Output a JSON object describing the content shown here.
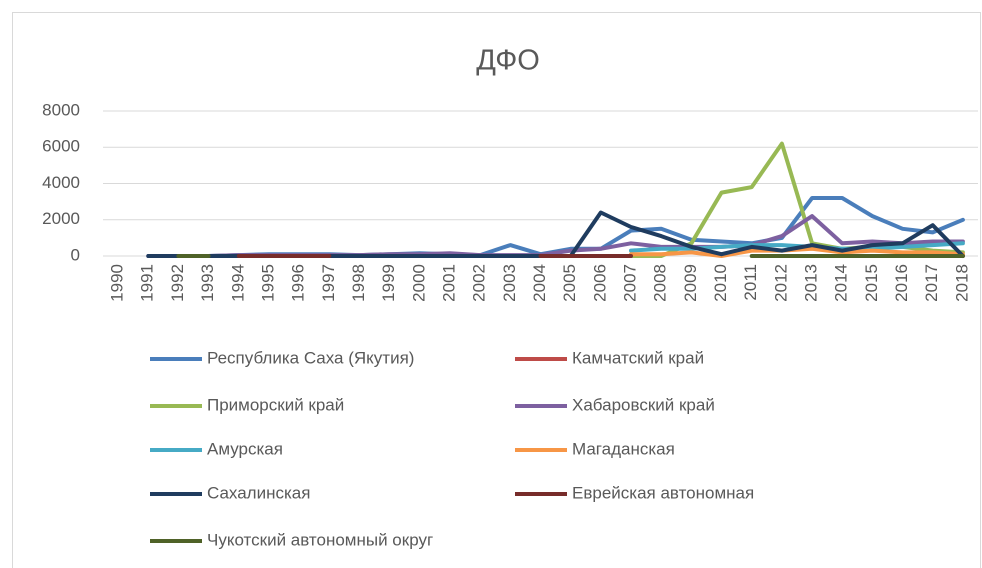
{
  "chart_data": {
    "type": "line",
    "title": "ДФО",
    "categories": [
      "1990",
      "1991",
      "1992",
      "1993",
      "1994",
      "1995",
      "1996",
      "1997",
      "1998",
      "1999",
      "2000",
      "2001",
      "2002",
      "2003",
      "2004",
      "2005",
      "2006",
      "2007",
      "2008",
      "2009",
      "2010",
      "2011",
      "2012",
      "2013",
      "2014",
      "2015",
      "2016",
      "2017",
      "2018"
    ],
    "ylim": [
      0,
      8000
    ],
    "yticks": [
      0,
      2000,
      4000,
      6000,
      8000
    ],
    "grid": true,
    "series": [
      {
        "name": "Республика Саха (Якутия)",
        "color": "#4a7ebb",
        "values": [
          null,
          0,
          0,
          0,
          50,
          100,
          100,
          100,
          50,
          100,
          150,
          100,
          50,
          600,
          100,
          400,
          400,
          1400,
          1500,
          900,
          800,
          700,
          1000,
          3200,
          3200,
          2200,
          1500,
          1300,
          2000
        ]
      },
      {
        "name": "Камчатский край",
        "color": "#be4b48",
        "values": [
          null,
          null,
          null,
          0,
          0,
          0,
          0,
          0,
          null,
          null,
          null,
          null,
          null,
          null,
          0,
          0,
          0,
          0,
          null,
          null,
          null,
          null,
          null,
          null,
          null,
          null,
          null,
          null,
          null
        ]
      },
      {
        "name": "Приморский край",
        "color": "#98b954",
        "values": [
          null,
          null,
          0,
          0,
          0,
          0,
          0,
          0,
          0,
          0,
          0,
          0,
          0,
          0,
          0,
          0,
          0,
          0,
          0,
          700,
          3500,
          3800,
          6200,
          700,
          400,
          500,
          500,
          300,
          200
        ]
      },
      {
        "name": "Хабаровский край",
        "color": "#7d60a0",
        "values": [
          null,
          0,
          0,
          0,
          50,
          50,
          50,
          50,
          50,
          100,
          100,
          150,
          50,
          50,
          50,
          300,
          400,
          700,
          500,
          500,
          500,
          600,
          1100,
          2200,
          700,
          800,
          700,
          800,
          800
        ]
      },
      {
        "name": "Амурская",
        "color": "#46aac5",
        "values": [
          null,
          null,
          null,
          null,
          null,
          null,
          null,
          null,
          null,
          null,
          null,
          null,
          null,
          null,
          null,
          null,
          null,
          300,
          400,
          400,
          500,
          600,
          600,
          500,
          400,
          400,
          500,
          600,
          700
        ]
      },
      {
        "name": "Магаданская",
        "color": "#f79646",
        "values": [
          null,
          null,
          null,
          null,
          null,
          null,
          null,
          null,
          null,
          null,
          null,
          null,
          null,
          null,
          null,
          null,
          null,
          100,
          100,
          200,
          0,
          300,
          300,
          400,
          200,
          300,
          200,
          200,
          100
        ]
      },
      {
        "name": "Сахалинская",
        "color": "#1f3c5f",
        "values": [
          null,
          0,
          0,
          0,
          0,
          0,
          0,
          0,
          0,
          0,
          0,
          0,
          0,
          0,
          0,
          0,
          2400,
          1600,
          1100,
          500,
          100,
          500,
          300,
          600,
          300,
          600,
          700,
          1700,
          0
        ]
      },
      {
        "name": "Еврейская автономная",
        "color": "#772c2a",
        "values": [
          null,
          null,
          null,
          null,
          0,
          0,
          0,
          0,
          null,
          null,
          null,
          null,
          null,
          null,
          0,
          0,
          0,
          0,
          null,
          null,
          null,
          null,
          null,
          null,
          null,
          null,
          null,
          0,
          0
        ]
      },
      {
        "name": "Чукотский автономный округ",
        "color": "#4f6228",
        "values": [
          null,
          null,
          0,
          0,
          null,
          null,
          null,
          null,
          null,
          null,
          null,
          null,
          null,
          null,
          null,
          null,
          null,
          null,
          null,
          null,
          null,
          0,
          0,
          0,
          0,
          0,
          0,
          0,
          0
        ]
      }
    ]
  }
}
